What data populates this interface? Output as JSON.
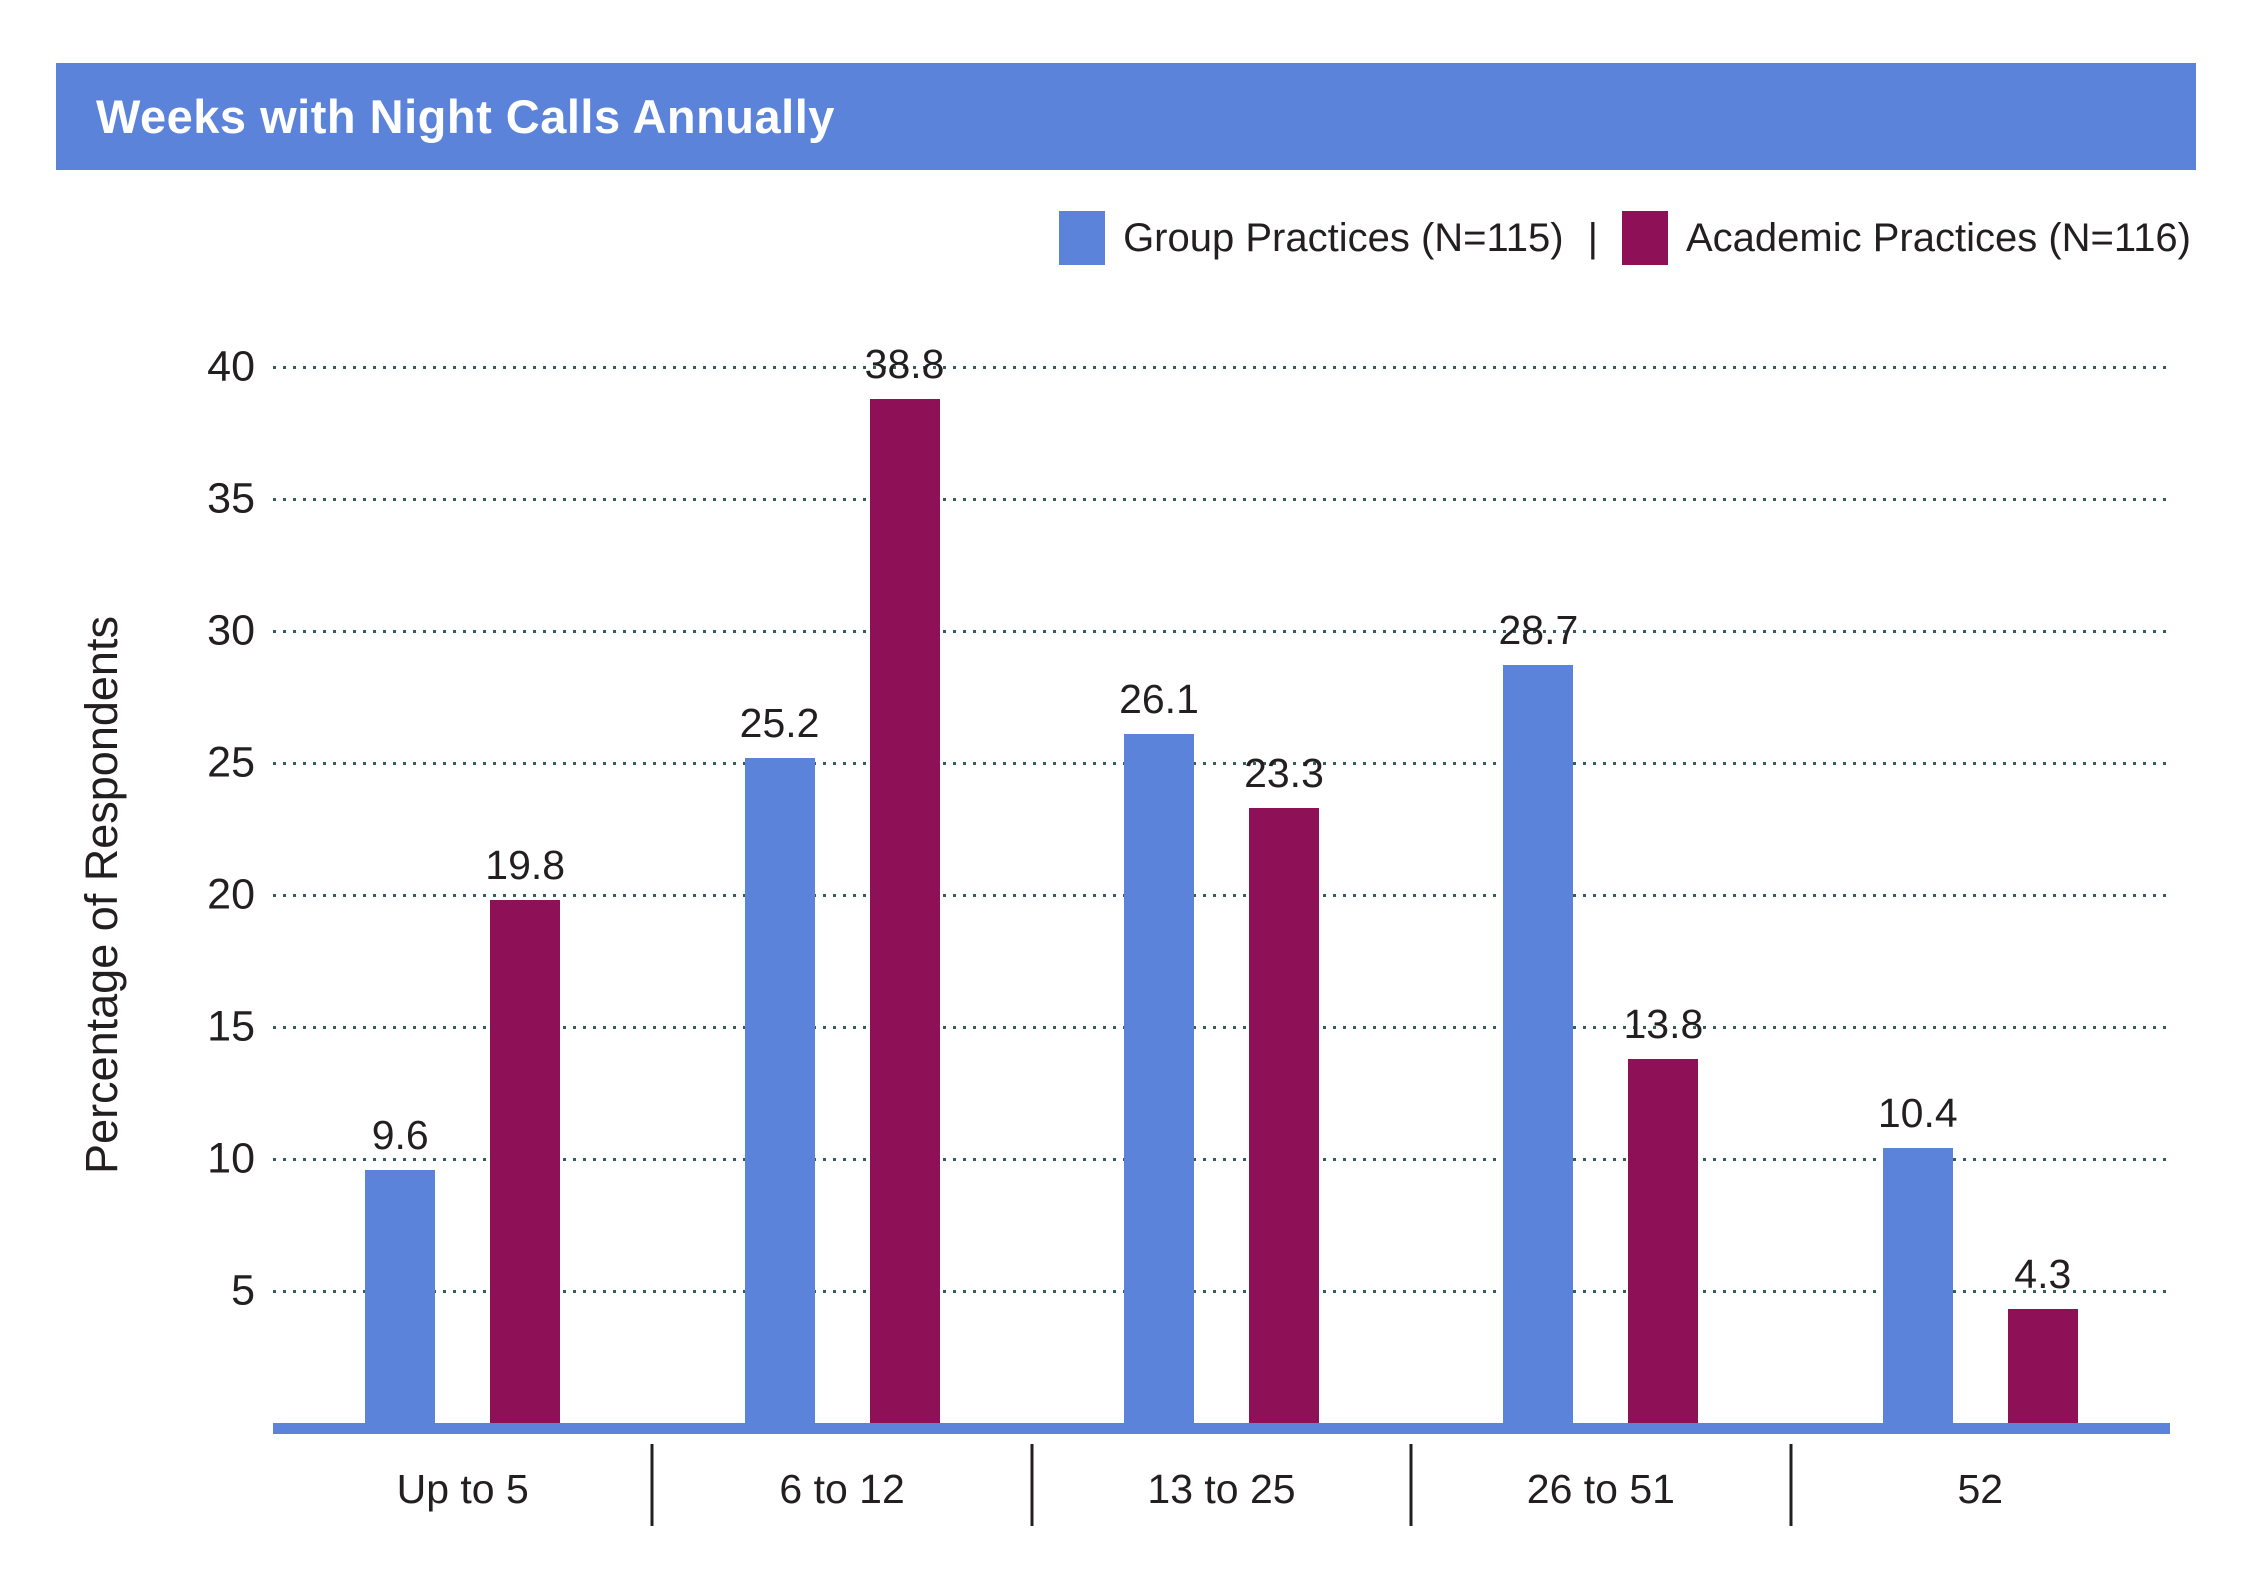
{
  "title_bar": {
    "text": "Weeks with Night Calls Annually",
    "bg_color": "#5c83da",
    "text_color": "#ffffff"
  },
  "legend": {
    "separator": "|",
    "items": [
      {
        "label": "Group Practices (N=115)",
        "color": "#5c83da"
      },
      {
        "label": "Academic Practices (N=116)",
        "color": "#8e1057"
      }
    ]
  },
  "chart_data": {
    "type": "bar",
    "title": "Weeks with Night Calls Annually",
    "categories": [
      "Up to 5",
      "6 to 12",
      "13 to 25",
      "26 to 51",
      "52"
    ],
    "series": [
      {
        "name": "Group Practices (N=115)",
        "color": "#5c83da",
        "values": [
          9.6,
          25.2,
          26.1,
          28.7,
          10.4
        ]
      },
      {
        "name": "Academic Practices (N=116)",
        "color": "#8e1057",
        "values": [
          19.8,
          38.8,
          23.3,
          13.8,
          4.3
        ]
      }
    ],
    "xlabel": "",
    "ylabel": "Percentage of Respondents",
    "ylim": [
      0,
      40
    ],
    "yticks": [
      5,
      10,
      15,
      20,
      25,
      30,
      35,
      40
    ],
    "grid": "dotted horizontal gridlines at each ytick",
    "gridline_color": "#335e5e",
    "axis_line_color": "#5c83da",
    "legend_position": "top-right",
    "value_labels": true
  }
}
